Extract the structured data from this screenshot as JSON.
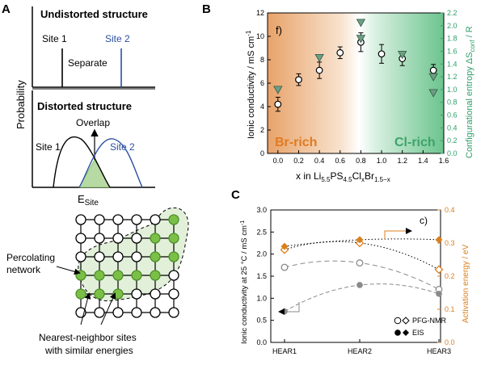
{
  "panel_labels": {
    "a": "A",
    "b": "B",
    "c": "C"
  },
  "panel_a": {
    "undistorted_title": "Undistorted structure",
    "site1": "Site 1",
    "site2": "Site 2",
    "separate": "Separate",
    "distorted_title": "Distorted structure",
    "overlap": "Overlap",
    "site1_b": "Site 1",
    "site2_b": "Site 2",
    "ylabel": "Probability",
    "xlabel": "E",
    "xlabel_sub": "Site",
    "percolating_1": "Percolating",
    "percolating_2": "network",
    "nn_1": "Nearest-neighbor sites",
    "nn_2": "with similar energies",
    "colors": {
      "black": "#000000",
      "blue": "#2b4fa3",
      "green": "#5ab030",
      "green_fill": "#b7d9a3"
    }
  },
  "chart_data": [
    {
      "type": "scatter",
      "panel": "B",
      "inner_label": "f)",
      "x": [
        0.0,
        0.2,
        0.4,
        0.6,
        0.8,
        1.0,
        1.2,
        1.5
      ],
      "series": [
        {
          "name": "Ionic conductivity",
          "axis": "left",
          "marker": "open-circle",
          "values": [
            4.2,
            6.3,
            7.1,
            8.6,
            9.5,
            8.5,
            8.1,
            7.1
          ],
          "errors": [
            0.6,
            0.5,
            0.7,
            0.5,
            0.8,
            0.8,
            0.6,
            0.5
          ]
        },
        {
          "name": "Configurational entropy",
          "axis": "right",
          "marker": "triangle-down",
          "values": [
            1.0,
            null,
            1.5,
            null,
            2.05,
            null,
            1.55,
            0.95
          ],
          "extra_points": [
            {
              "x": 0.8,
              "y": 1.8
            },
            {
              "x": 1.5,
              "y": 1.2
            }
          ]
        }
      ],
      "xlabel_parts": {
        "main": "x in Li",
        "s1": "5.5",
        "ps": "PS",
        "s2": "4.5",
        "cl": "Cl",
        "s3": "x",
        "br": "Br",
        "s4": "1.5−x"
      },
      "ylabel_left": "Ionic conductivity / mS cm",
      "ylabel_left_sup": "-1",
      "ylabel_right": "Configurational entropy ΔS",
      "ylabel_right_sub": "conf",
      "ylabel_right_end": " / R",
      "xlim": [
        -0.1,
        1.6
      ],
      "ylim_left": [
        0,
        12
      ],
      "ylim_right": [
        0.0,
        2.2
      ],
      "xticks": [
        "0.0",
        "0.2",
        "0.4",
        "0.6",
        "0.8",
        "1.0",
        "1.2",
        "1.4",
        "1.6"
      ],
      "yticks_left": [
        "0",
        "2",
        "4",
        "6",
        "8",
        "10",
        "12"
      ],
      "yticks_right": [
        "0.0",
        "0.2",
        "0.4",
        "0.6",
        "0.8",
        "1.0",
        "1.2",
        "1.4",
        "1.6",
        "1.8",
        "2.0",
        "2.2"
      ],
      "region_left": "Br-rich",
      "region_right": "Cl-rich",
      "colors": {
        "br": "#e07b22",
        "cl": "#4fb27a",
        "triangle": "#6e9e84",
        "axis_right": "#2f9e6a"
      }
    },
    {
      "type": "line",
      "panel": "C",
      "inner_label": "c)",
      "categories": [
        "HEAR1",
        "HEAR2",
        "HEAR3"
      ],
      "series": [
        {
          "name": "PFG-NMR conductivity",
          "axis": "left",
          "marker": "open-circle",
          "values": [
            1.7,
            1.8,
            1.2
          ]
        },
        {
          "name": "EIS conductivity",
          "axis": "left",
          "marker": "filled-circle",
          "values": [
            0.7,
            1.3,
            1.1
          ]
        },
        {
          "name": "PFG-NMR activation energy",
          "axis": "right",
          "marker": "open-diamond",
          "values": [
            0.28,
            0.3,
            0.22
          ]
        },
        {
          "name": "EIS activation energy",
          "axis": "right",
          "marker": "filled-diamond",
          "values": [
            0.29,
            0.31,
            0.31
          ]
        }
      ],
      "ylabel_left": "Ionic conductivity at 25 °C /  mS cm",
      "ylabel_left_sup": "-1",
      "ylabel_right": "Activation energy / eV",
      "ylim_left": [
        0.0,
        3.0
      ],
      "ylim_right": [
        0.0,
        0.4
      ],
      "yticks_left": [
        "0.0",
        "0.5",
        "1.0",
        "1.5",
        "2.0",
        "2.5",
        "3.0"
      ],
      "yticks_right": [
        "0.0",
        "0.1",
        "0.2",
        "0.3",
        "0.4"
      ],
      "legend": [
        {
          "label": "PFG-NMR",
          "markers": "open"
        },
        {
          "label": "EIS",
          "markers": "filled"
        }
      ],
      "legend_position": "bottom-right",
      "colors": {
        "grey": "#8a8a8a",
        "orange": "#d9801e"
      }
    }
  ]
}
